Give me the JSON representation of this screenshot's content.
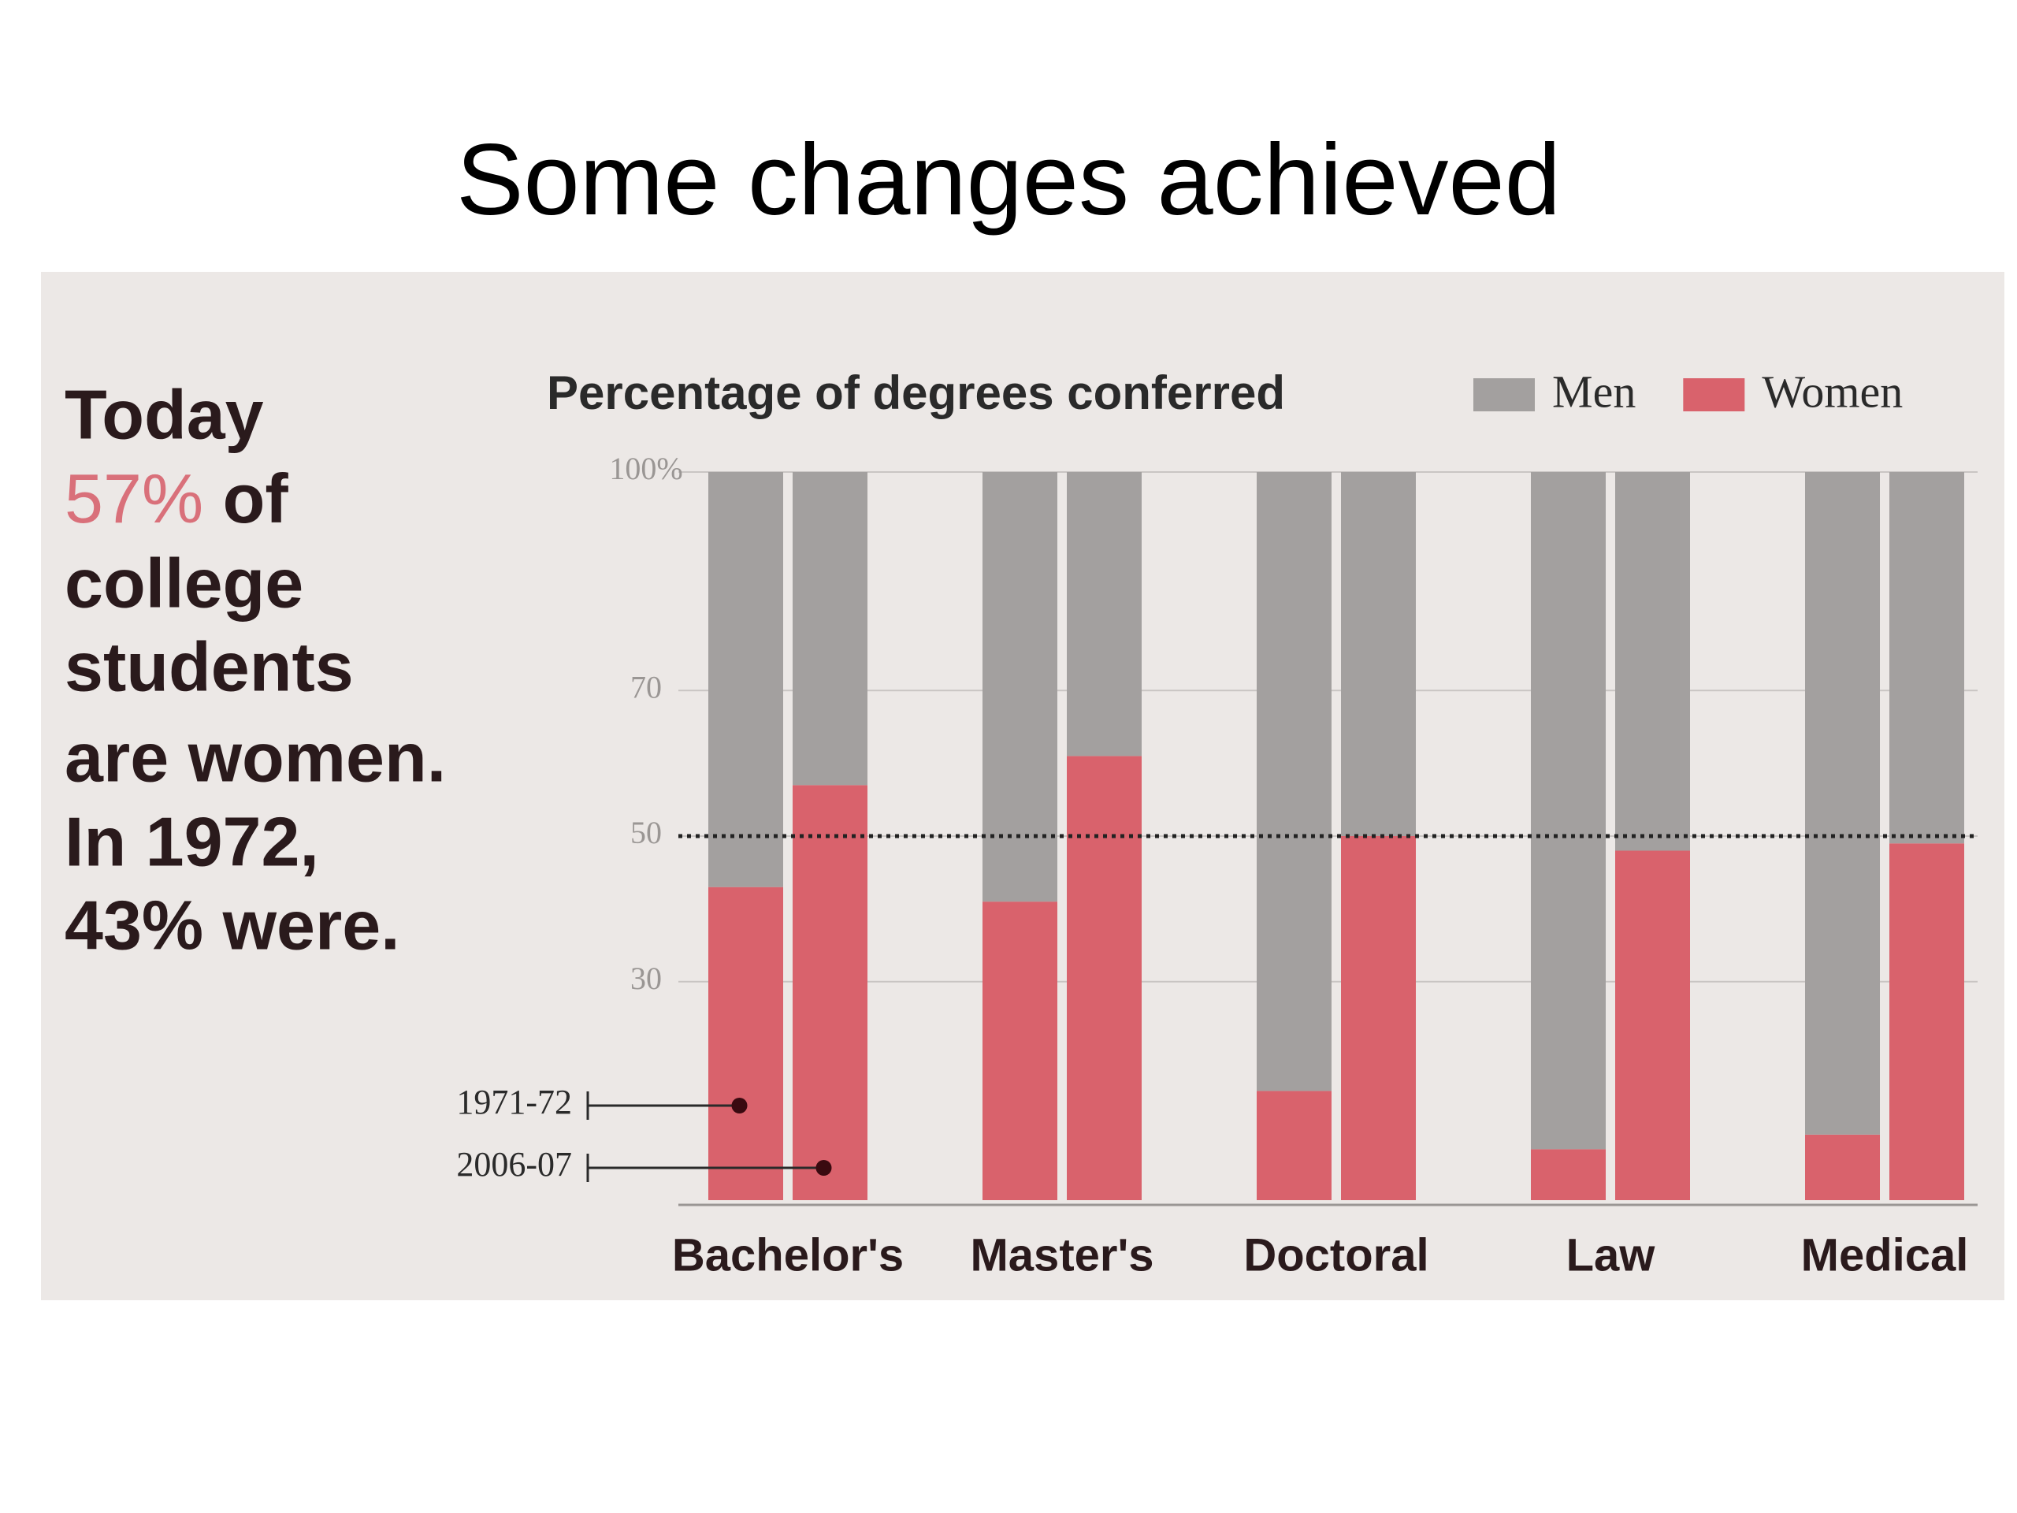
{
  "slide_title": "Some changes achieved",
  "sidebar": [
    "Today",
    "57%",
    "of",
    "college",
    "students",
    "are women.",
    "In 1972,",
    "43% were."
  ],
  "chart_data": {
    "type": "bar",
    "stacked": true,
    "title": "Percentage of degrees conferred",
    "categories": [
      "Bachelor's",
      "Master's",
      "Doctoral",
      "Law",
      "Medical"
    ],
    "bar_labels": [
      "1971-72",
      "2006-07"
    ],
    "series": [
      {
        "name": "Women",
        "color": "#d9626c",
        "values": [
          [
            43,
            57
          ],
          [
            41,
            61
          ],
          [
            15,
            50
          ],
          [
            7,
            48
          ],
          [
            9,
            49
          ]
        ]
      },
      {
        "name": "Men",
        "color": "#a3a09f",
        "values": [
          [
            57,
            43
          ],
          [
            59,
            39
          ],
          [
            85,
            50
          ],
          [
            93,
            52
          ],
          [
            91,
            51
          ]
        ]
      }
    ],
    "ylim": [
      0,
      100
    ],
    "yticks": [
      30,
      50,
      70,
      {
        "value": 100,
        "label": "100%"
      }
    ],
    "reference_line": 50,
    "grid": true
  }
}
